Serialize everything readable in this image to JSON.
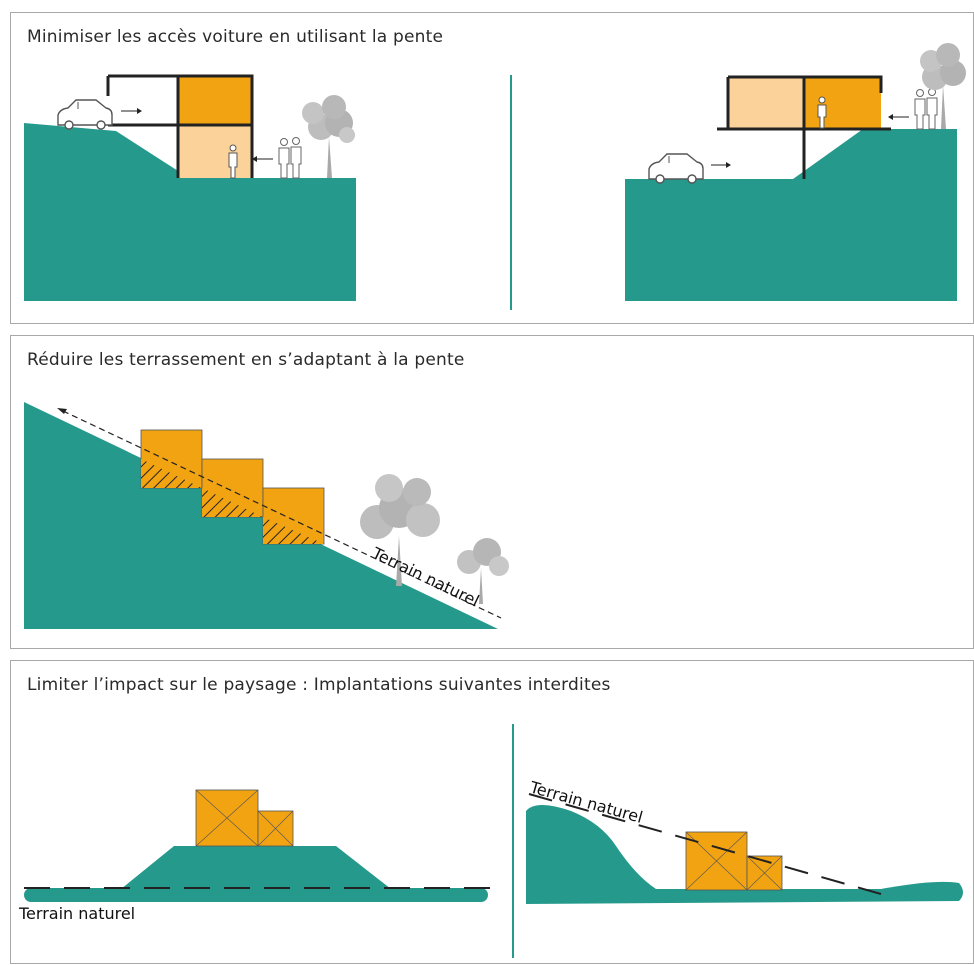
{
  "panels": [
    {
      "title": "Minimiser les accès voiture en utilisant la pente"
    },
    {
      "title": "Réduire les terrassement en s’adaptant à la pente",
      "label_terrain": "Terrain naturel"
    },
    {
      "title": "Limiter l’impact sur le paysage : Implantations suivantes interdites",
      "label_terrain_left": "Terrain naturel",
      "label_terrain_right": "Terrain naturel"
    }
  ],
  "colors": {
    "terrain": "#259a8c",
    "building": "#f2a312",
    "building_light": "#fbd39a",
    "line": "#222222",
    "tree": "#a9a9a9"
  },
  "icons": [
    "car-icon",
    "people-icon",
    "tree-icon",
    "arrow-icon"
  ]
}
